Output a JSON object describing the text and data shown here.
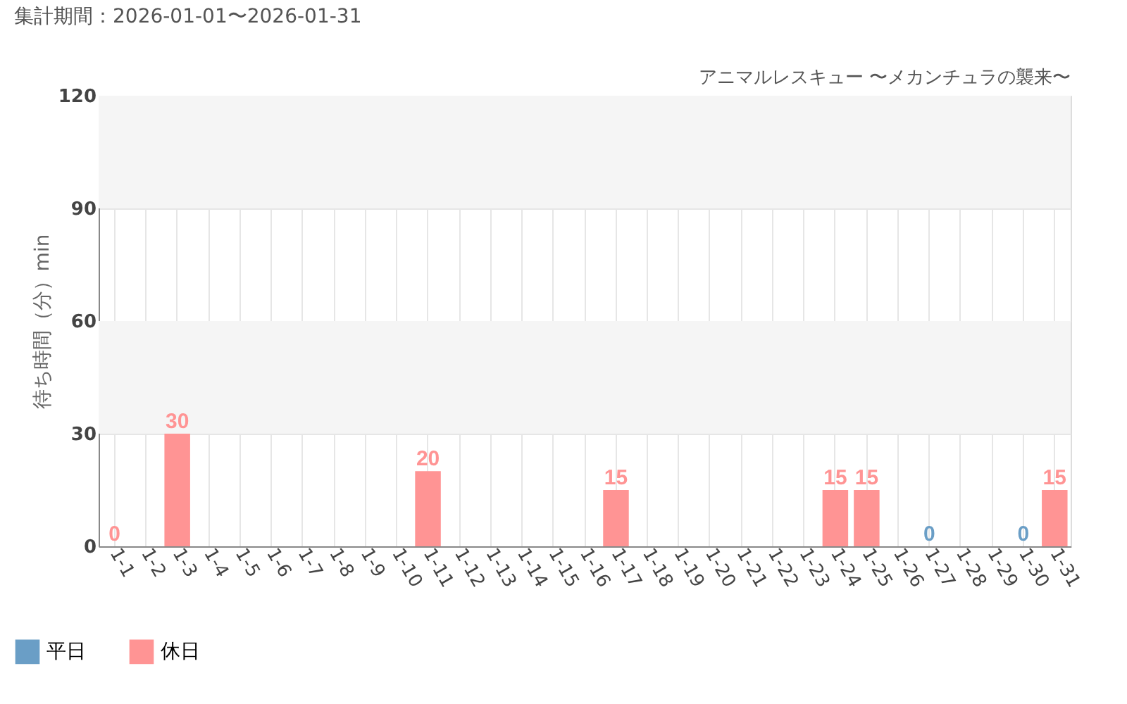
{
  "chart_data": {
    "type": "bar",
    "title": "アニマルレスキュー 〜メカンチュラの襲来〜",
    "subtitle": "集計期間：2026-01-01〜2026-01-31",
    "ylabel": "待ち時間（分）min",
    "categories": [
      "1-1",
      "1-2",
      "1-3",
      "1-4",
      "1-5",
      "1-6",
      "1-7",
      "1-8",
      "1-9",
      "1-10",
      "1-11",
      "1-12",
      "1-13",
      "1-14",
      "1-15",
      "1-16",
      "1-17",
      "1-18",
      "1-19",
      "1-20",
      "1-21",
      "1-22",
      "1-23",
      "1-24",
      "1-25",
      "1-26",
      "1-27",
      "1-28",
      "1-29",
      "1-30",
      "1-31"
    ],
    "series": [
      {
        "name": "平日",
        "color": "#6a9ec6",
        "values": [
          null,
          null,
          null,
          null,
          null,
          null,
          null,
          null,
          null,
          null,
          null,
          null,
          null,
          null,
          null,
          null,
          null,
          null,
          null,
          null,
          null,
          null,
          null,
          null,
          null,
          null,
          0,
          null,
          null,
          0,
          null
        ]
      },
      {
        "name": "休日",
        "color": "#ff9494",
        "values": [
          0,
          null,
          30,
          null,
          null,
          null,
          null,
          null,
          null,
          null,
          20,
          null,
          null,
          null,
          null,
          null,
          15,
          null,
          null,
          null,
          null,
          null,
          null,
          15,
          15,
          null,
          null,
          null,
          null,
          null,
          15
        ]
      }
    ],
    "ylim": [
      0,
      120
    ],
    "yticks": [
      0,
      30,
      60,
      90,
      120
    ],
    "bands": [
      {
        "axis": "y",
        "from": 30,
        "to": 60,
        "color": "#f5f5f5"
      },
      {
        "axis": "y",
        "from": 90,
        "to": 120,
        "color": "#f5f5f5"
      }
    ],
    "grid": true,
    "legend": "bottom left",
    "data_labels": true
  }
}
